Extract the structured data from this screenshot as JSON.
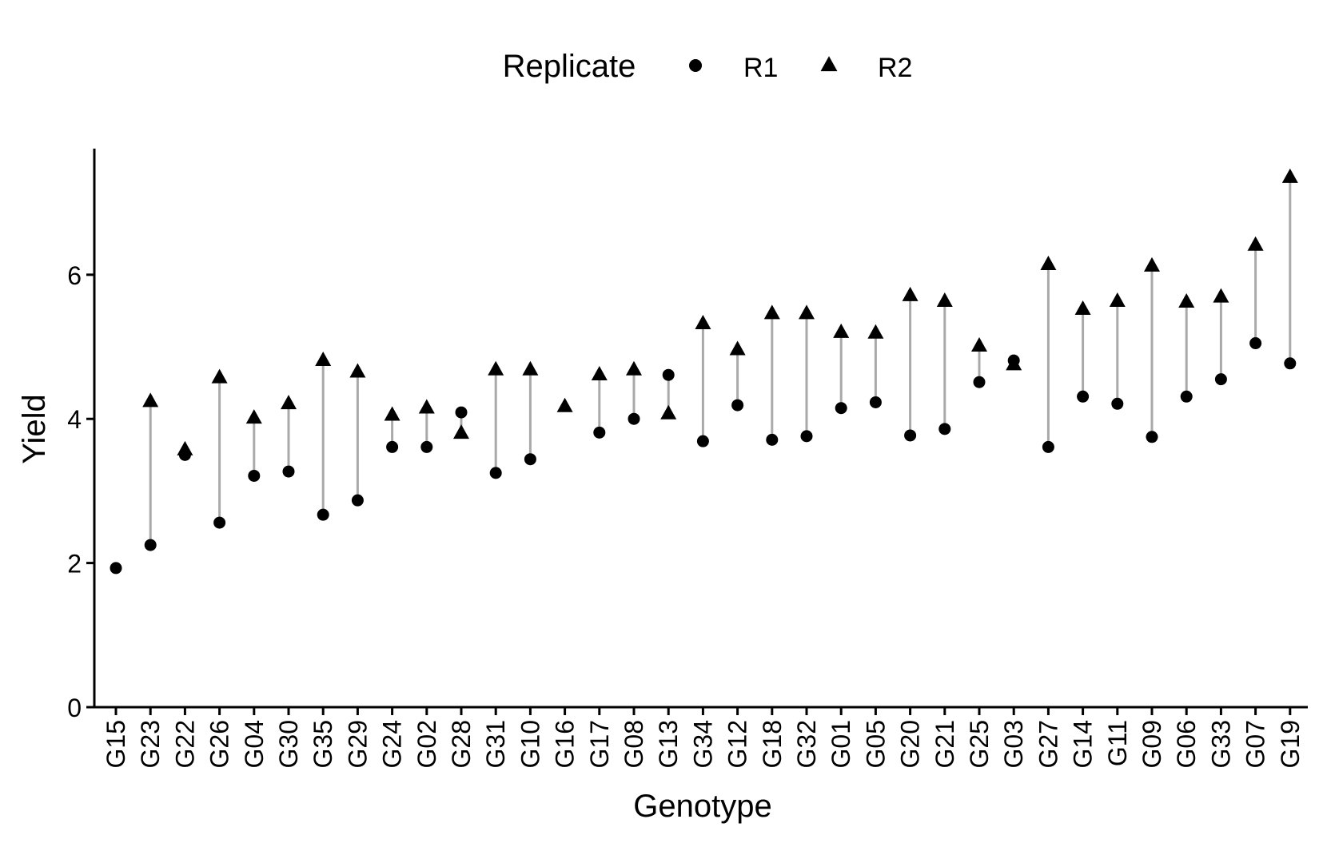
{
  "chart_data": {
    "type": "scatter",
    "title": "",
    "xlabel": "Genotype",
    "ylabel": "Yield",
    "ylim": [
      0,
      7.75
    ],
    "yticks": [
      0,
      2,
      4,
      6
    ],
    "grid": false,
    "legend": {
      "title": "Replicate",
      "position": "top"
    },
    "categories": [
      "G15",
      "G23",
      "G22",
      "G26",
      "G04",
      "G30",
      "G35",
      "G29",
      "G24",
      "G02",
      "G28",
      "G31",
      "G10",
      "G16",
      "G17",
      "G08",
      "G13",
      "G34",
      "G12",
      "G18",
      "G32",
      "G01",
      "G05",
      "G20",
      "G21",
      "G25",
      "G03",
      "G27",
      "G14",
      "G11",
      "G09",
      "G06",
      "G33",
      "G07",
      "G19"
    ],
    "series": [
      {
        "name": "R1",
        "marker": "circle",
        "values": [
          1.93,
          2.25,
          3.5,
          2.56,
          3.21,
          3.27,
          2.67,
          2.87,
          3.61,
          3.61,
          4.09,
          3.25,
          3.44,
          null,
          3.81,
          4.0,
          4.61,
          3.69,
          4.19,
          3.71,
          3.76,
          4.15,
          4.23,
          3.77,
          3.86,
          4.51,
          4.81,
          3.61,
          4.31,
          4.21,
          3.75,
          4.31,
          4.55,
          5.05,
          4.77
        ]
      },
      {
        "name": "R2",
        "marker": "triangle",
        "values": [
          null,
          4.24,
          3.57,
          4.57,
          4.01,
          4.21,
          4.81,
          4.65,
          4.05,
          4.15,
          3.8,
          4.68,
          4.68,
          4.17,
          4.61,
          4.68,
          4.07,
          5.32,
          4.96,
          5.46,
          5.46,
          5.2,
          5.19,
          5.71,
          5.63,
          5.01,
          4.75,
          6.14,
          5.52,
          5.63,
          6.12,
          5.62,
          5.69,
          6.41,
          7.35
        ]
      }
    ],
    "segment_color": "#a9a9a9"
  }
}
